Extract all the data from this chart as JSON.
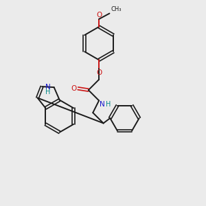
{
  "bg_color": "#ebebeb",
  "bond_color": "#1a1a1a",
  "N_color": "#1414cc",
  "O_color": "#cc1414",
  "H_color": "#008888",
  "figsize": [
    3.0,
    3.0
  ],
  "dpi": 100,
  "xlim": [
    0,
    10
  ],
  "ylim": [
    0,
    10
  ],
  "lw": 1.4,
  "dlw": 1.2,
  "doff": 0.065
}
